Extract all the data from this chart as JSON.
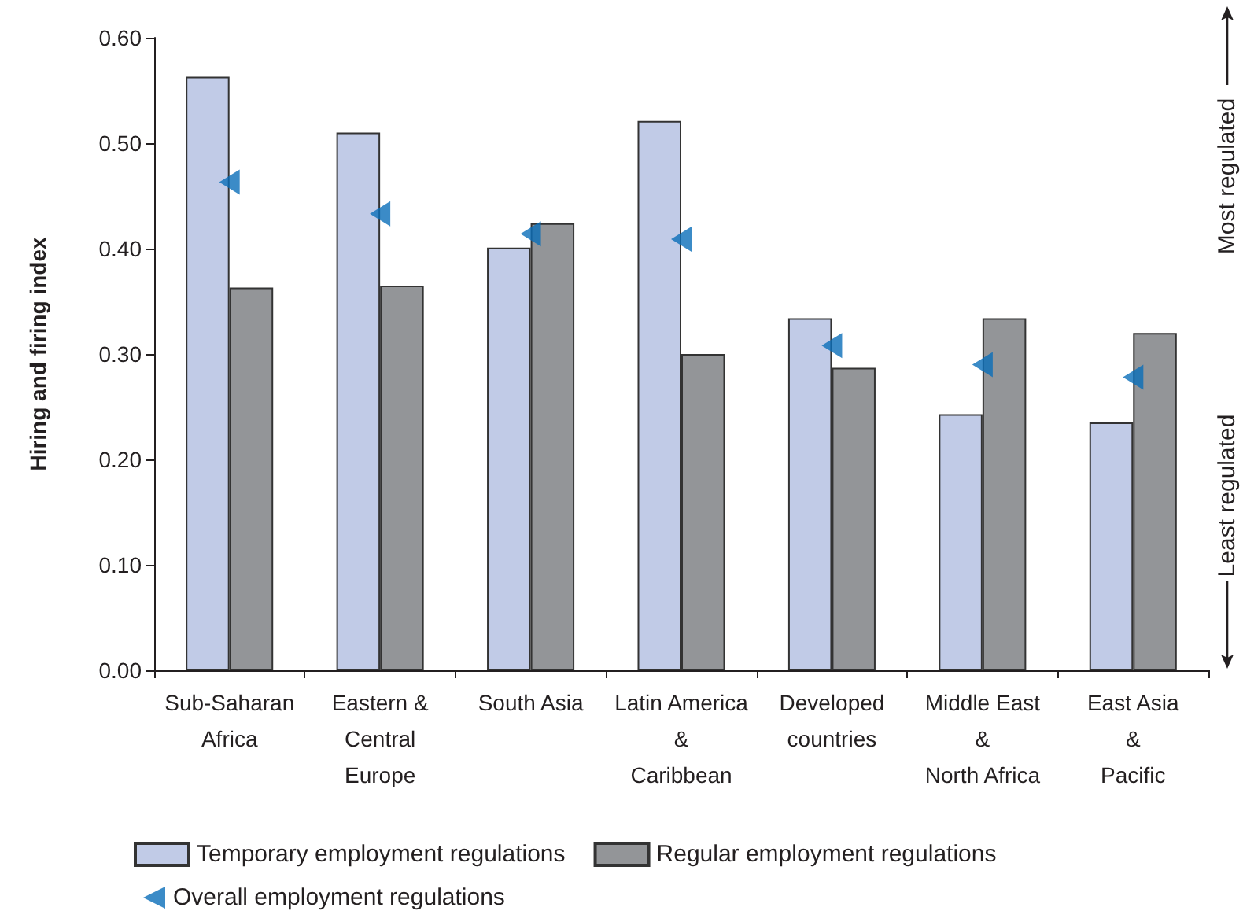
{
  "chart_data": {
    "type": "bar",
    "ylabel": "Hiring and firing index",
    "categories": [
      "Sub-Saharan\nAfrica",
      "Eastern &\nCentral\nEurope",
      "South Asia",
      "Latin America\n&\nCaribbean",
      "Developed\ncountries",
      "Middle East\n&\nNorth Africa",
      "East Asia\n&\nPacific"
    ],
    "series": [
      {
        "name": "Temporary employment regulations",
        "color": "#c1cbe7",
        "values": [
          0.563,
          0.51,
          0.401,
          0.521,
          0.334,
          0.243,
          0.235
        ]
      },
      {
        "name": "Regular employment regulations",
        "color": "#939598",
        "values": [
          0.363,
          0.365,
          0.424,
          0.3,
          0.287,
          0.334,
          0.32
        ]
      },
      {
        "name": "Overall employment regulations",
        "type": "scatter",
        "color": "#0a6eb9",
        "marker": "triangle",
        "x": [
          "Sub-Saharan\nAfrica",
          "Eastern &\nCentral\nEurope",
          "South Asia",
          "Latin America\n&\nCaribbean",
          "Developed\ncountries",
          "Middle East\n&\nNorth Africa",
          "East Asia\n&\nPacific"
        ],
        "values": [
          0.463,
          0.433,
          0.414,
          0.409,
          0.308,
          0.29,
          0.278
        ]
      }
    ],
    "ylim": [
      0,
      0.6
    ],
    "yticks": [
      {
        "value": 0,
        "label": "0.00"
      },
      {
        "value": 0.1,
        "label": "0.10"
      },
      {
        "value": 0.2,
        "label": "0.20"
      },
      {
        "value": 0.3,
        "label": "0.30"
      },
      {
        "value": 0.4,
        "label": "0.40"
      },
      {
        "value": 0.5,
        "label": "0.50"
      },
      {
        "value": 0.6,
        "label": "0.60"
      }
    ],
    "grid": false,
    "legend": "bottom left",
    "annotations": [
      "Most regulated",
      "Least regulated"
    ]
  }
}
